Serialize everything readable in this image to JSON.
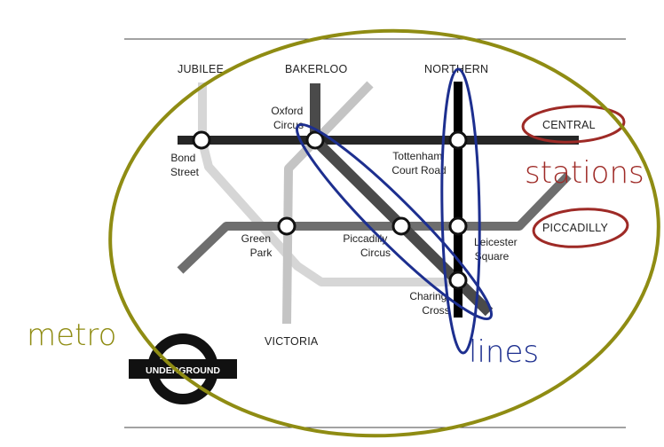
{
  "lines": {
    "jubilee": "JUBILEE",
    "bakerloo": "BAKERLOO",
    "northern": "NORTHERN",
    "central": "CENTRAL",
    "piccadilly": "PICCADILLY",
    "victoria": "VICTORIA"
  },
  "stations": {
    "oxford_circus": [
      "Oxford",
      "Circus"
    ],
    "bond_street": [
      "Bond",
      "Street"
    ],
    "tottenham_court_road": [
      "Tottenham",
      "Court Road"
    ],
    "green_park": [
      "Green",
      "Park"
    ],
    "piccadilly_circus": [
      "Piccadilly",
      "Circus"
    ],
    "leicester_square": [
      "Leicester",
      "Square"
    ],
    "charing_cross": [
      "Charing",
      "Cross"
    ]
  },
  "annotations": {
    "stations": "stations",
    "lines": "lines",
    "metro": "metro"
  },
  "logo": {
    "text": "UNDERGROUND"
  },
  "colors": {
    "jubilee": "#d6d6d6",
    "victoria": "#c4c4c4",
    "central": "#262626",
    "piccadilly": "#6e6e6e",
    "bakerloo": "#4a4a4a",
    "northern": "#000000",
    "metro_ellipse": "#8f8c13",
    "stations_highlight": "#9e2a26",
    "lines_highlight": "#1d2f8f"
  }
}
